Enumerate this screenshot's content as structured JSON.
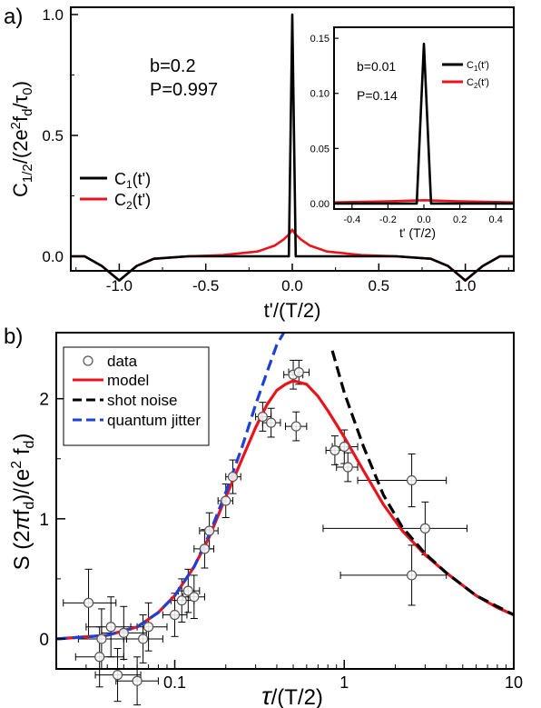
{
  "chart_data": [
    {
      "panel_label": "a)",
      "type": "line",
      "ylabel": {
        "base": "C",
        "sub": "1/2",
        "mid": "/(2e",
        "sup": "2",
        "tail1": "f",
        "sub2": "d",
        "tail2": "/τ",
        "sub3": "0",
        "end": ")"
      },
      "xlabel": "t'/(T/2)",
      "xlim": [
        -1.28,
        1.28
      ],
      "ylim": [
        -0.06,
        1.03
      ],
      "x_ticks": [
        -1.0,
        -0.5,
        0.0,
        0.5,
        1.0
      ],
      "x_tick_labels": [
        "-1.0",
        "-0.5",
        "0.0",
        "0.5",
        "1.0"
      ],
      "y_ticks": [
        0.0,
        0.5,
        1.0
      ],
      "y_tick_labels": [
        "0.0",
        "0.5",
        "1.0"
      ],
      "annotations": [
        "b=0.2",
        "P=0.997"
      ],
      "series": [
        {
          "name": "C1(t')",
          "name_base": "C",
          "name_sub": "1",
          "name_tail": "(t')",
          "color": "#000000",
          "x": [
            -1.28,
            -1.2,
            -1.1,
            -1.0,
            -0.9,
            -0.8,
            -0.6,
            -0.4,
            -0.2,
            -0.1,
            -0.05,
            -0.02,
            0.0,
            0.02,
            0.05,
            0.1,
            0.2,
            0.4,
            0.6,
            0.8,
            0.9,
            1.0,
            1.1,
            1.2,
            1.28
          ],
          "y": [
            0.0,
            0.0,
            -0.04,
            -0.1,
            -0.04,
            -0.01,
            0.0,
            0.0,
            0.0,
            0.0,
            0.0,
            0.0,
            1.0,
            0.0,
            0.0,
            0.0,
            0.0,
            0.0,
            0.0,
            -0.01,
            -0.04,
            -0.1,
            -0.04,
            0.0,
            0.0
          ]
        },
        {
          "name": "C2(t')",
          "name_base": "C",
          "name_sub": "2",
          "name_tail": "(t')",
          "color": "#e8141b",
          "x": [
            -1.28,
            -1.2,
            -1.1,
            -1.0,
            -0.9,
            -0.8,
            -0.6,
            -0.4,
            -0.2,
            -0.1,
            -0.05,
            -0.02,
            0.0,
            0.02,
            0.05,
            0.1,
            0.2,
            0.4,
            0.6,
            0.8,
            0.9,
            1.0,
            1.1,
            1.2,
            1.28
          ],
          "y": [
            0.0,
            0.0,
            -0.04,
            -0.1,
            -0.04,
            -0.01,
            0.0,
            0.005,
            0.02,
            0.045,
            0.07,
            0.09,
            0.11,
            0.09,
            0.07,
            0.045,
            0.02,
            0.005,
            0.0,
            -0.01,
            -0.04,
            -0.1,
            -0.04,
            0.0,
            0.0
          ]
        }
      ],
      "inset": {
        "xlabel": "t' (T/2)",
        "xlim": [
          -0.5,
          0.5
        ],
        "ylim": [
          -0.005,
          0.16
        ],
        "x_ticks": [
          -0.4,
          -0.2,
          0.0,
          0.2,
          0.4
        ],
        "x_tick_labels": [
          "-0.4",
          "-0.2",
          "0.0",
          "0.2",
          "0.4"
        ],
        "y_ticks": [
          0.0,
          0.05,
          0.1,
          0.15
        ],
        "y_tick_labels": [
          "0.00",
          "0.05",
          "0.10",
          "0.15"
        ],
        "annotations": [
          "b=0.01",
          "P=0.14"
        ],
        "series": [
          {
            "name": "C1(t')",
            "name_base": "C",
            "name_sub": "1",
            "name_tail": "(t')",
            "color": "#000000",
            "x": [
              -0.5,
              -0.04,
              0.0,
              0.04,
              0.5
            ],
            "y": [
              0.0,
              0.0,
              0.145,
              0.0,
              0.0
            ]
          },
          {
            "name": "C2(t')",
            "name_base": "C",
            "name_sub": "2",
            "name_tail": "(t')",
            "color": "#e8141b",
            "x": [
              -0.5,
              -0.2,
              0.0,
              0.2,
              0.5
            ],
            "y": [
              0.001,
              0.002,
              0.003,
              0.002,
              0.001
            ]
          }
        ]
      }
    },
    {
      "panel_label": "b)",
      "type": "scatter",
      "ylabel": {
        "base": "S (2",
        "pi": "π",
        "mid": "f",
        "sub": "d",
        "mid2": ")/(e",
        "sup": "2",
        "tail": " f",
        "sub2": "d",
        "end": ")"
      },
      "xlabel": {
        "tau": "τ",
        "rest": "/(T/2)"
      },
      "xscale": "log",
      "xlim": [
        0.02,
        10
      ],
      "ylim": [
        -0.25,
        2.55
      ],
      "x_ticks": [
        0.1,
        1,
        10
      ],
      "x_tick_labels": [
        "0.1",
        "1",
        "10"
      ],
      "y_ticks": [
        0,
        1,
        2
      ],
      "y_tick_labels": [
        "0",
        "1",
        "2"
      ],
      "legend_position": "top-left",
      "data_points": [
        {
          "x": 0.031,
          "y": 0.3,
          "xerr": [
            0.022,
            0.045
          ],
          "yerr": 0.28
        },
        {
          "x": 0.036,
          "y": -0.15,
          "xerr": [
            0.026,
            0.05
          ],
          "yerr": 0.25
        },
        {
          "x": 0.037,
          "y": 0.0,
          "xerr": [
            0.027,
            0.052
          ],
          "yerr": 0.25
        },
        {
          "x": 0.042,
          "y": 0.1,
          "xerr": [
            0.03,
            0.06
          ],
          "yerr": 0.25
        },
        {
          "x": 0.046,
          "y": -0.3,
          "xerr": [
            0.034,
            0.063
          ],
          "yerr": 0.22
        },
        {
          "x": 0.05,
          "y": 0.05,
          "xerr": [
            0.037,
            0.068
          ],
          "yerr": 0.22
        },
        {
          "x": 0.06,
          "y": -0.35,
          "xerr": [
            0.045,
            0.08
          ],
          "yerr": 0.2
        },
        {
          "x": 0.065,
          "y": 0.0,
          "xerr": [
            0.05,
            0.085
          ],
          "yerr": 0.2
        },
        {
          "x": 0.07,
          "y": 0.1,
          "xerr": [
            0.055,
            0.09
          ],
          "yerr": 0.2
        },
        {
          "x": 0.1,
          "y": 0.2,
          "xerr": [
            0.085,
            0.118
          ],
          "yerr": 0.18
        },
        {
          "x": 0.11,
          "y": 0.32,
          "xerr": [
            0.095,
            0.13
          ],
          "yerr": 0.18
        },
        {
          "x": 0.12,
          "y": 0.4,
          "xerr": [
            0.105,
            0.14
          ],
          "yerr": 0.18
        },
        {
          "x": 0.13,
          "y": 0.35,
          "xerr": [
            0.112,
            0.15
          ],
          "yerr": 0.18
        },
        {
          "x": 0.15,
          "y": 0.75,
          "xerr": [
            0.13,
            0.17
          ],
          "yerr": 0.16
        },
        {
          "x": 0.16,
          "y": 0.9,
          "xerr": [
            0.14,
            0.18
          ],
          "yerr": 0.15
        },
        {
          "x": 0.2,
          "y": 1.15,
          "xerr": [
            0.18,
            0.22
          ],
          "yerr": 0.14
        },
        {
          "x": 0.22,
          "y": 1.35,
          "xerr": [
            0.2,
            0.245
          ],
          "yerr": 0.14
        },
        {
          "x": 0.33,
          "y": 1.85,
          "xerr": [
            0.3,
            0.37
          ],
          "yerr": 0.12
        },
        {
          "x": 0.37,
          "y": 1.8,
          "xerr": [
            0.33,
            0.42
          ],
          "yerr": 0.12
        },
        {
          "x": 0.5,
          "y": 2.2,
          "xerr": [
            0.44,
            0.57
          ],
          "yerr": 0.12
        },
        {
          "x": 0.52,
          "y": 1.77,
          "xerr": [
            0.45,
            0.6
          ],
          "yerr": 0.12
        },
        {
          "x": 0.54,
          "y": 2.22,
          "xerr": [
            0.47,
            0.62
          ],
          "yerr": 0.1
        },
        {
          "x": 0.88,
          "y": 1.57,
          "xerr": [
            0.78,
            1.0
          ],
          "yerr": 0.12
        },
        {
          "x": 1.0,
          "y": 1.6,
          "xerr": [
            0.85,
            1.2
          ],
          "yerr": 0.14
        },
        {
          "x": 1.05,
          "y": 1.43,
          "xerr": [
            0.9,
            1.2
          ],
          "yerr": 0.12
        },
        {
          "x": 2.5,
          "y": 1.32,
          "xerr": [
            1.2,
            4.0
          ],
          "yerr": 0.22
        },
        {
          "x": 3.0,
          "y": 0.92,
          "xerr": [
            0.75,
            5.3
          ],
          "yerr": 0.22
        },
        {
          "x": 2.5,
          "y": 0.53,
          "xerr": [
            0.95,
            4.0
          ],
          "yerr": 0.25
        }
      ],
      "series": [
        {
          "name": "data",
          "marker": "open-circle",
          "color": "#555555"
        },
        {
          "name": "model",
          "color": "#e8141b",
          "style": "solid",
          "x": [
            0.02,
            0.04,
            0.06,
            0.08,
            0.1,
            0.13,
            0.16,
            0.2,
            0.25,
            0.3,
            0.35,
            0.4,
            0.45,
            0.5,
            0.6,
            0.7,
            0.8,
            1.0,
            1.3,
            1.7,
            2.2,
            3.0,
            4.0,
            6.0,
            8.0,
            10.0
          ],
          "y": [
            0.0,
            0.03,
            0.1,
            0.22,
            0.36,
            0.6,
            0.85,
            1.18,
            1.5,
            1.76,
            1.95,
            2.07,
            2.12,
            2.15,
            2.12,
            2.02,
            1.9,
            1.68,
            1.4,
            1.12,
            0.9,
            0.7,
            0.55,
            0.36,
            0.26,
            0.2
          ]
        },
        {
          "name": "shot noise",
          "color": "#000000",
          "style": "dashed",
          "x": [
            0.85,
            1.0,
            1.3,
            1.7,
            2.2,
            3.0,
            4.0,
            6.0,
            8.0,
            10.0
          ],
          "y": [
            2.4,
            2.05,
            1.6,
            1.2,
            0.93,
            0.71,
            0.55,
            0.36,
            0.27,
            0.2
          ]
        },
        {
          "name": "quantum jitter",
          "color": "#1f3fd6",
          "style": "dashed",
          "x": [
            0.02,
            0.04,
            0.06,
            0.08,
            0.1,
            0.13,
            0.16,
            0.2,
            0.25,
            0.3,
            0.35,
            0.4,
            0.44
          ],
          "y": [
            0.0,
            0.03,
            0.1,
            0.22,
            0.36,
            0.6,
            0.87,
            1.22,
            1.6,
            1.95,
            2.22,
            2.45,
            2.55
          ]
        }
      ]
    }
  ]
}
